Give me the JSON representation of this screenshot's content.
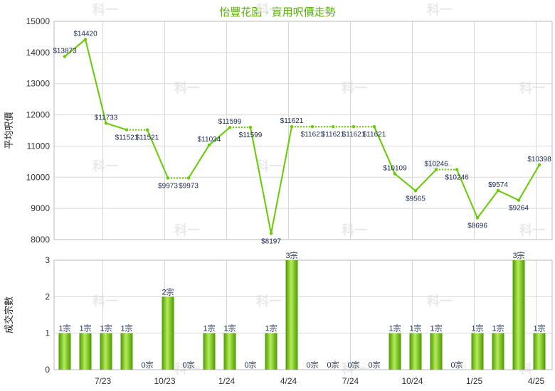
{
  "chart_data": [
    {
      "type": "line",
      "title": "怡豐花園 - 實用呎價走勢",
      "ylabel": "平均呎價",
      "ylim": [
        8000,
        15000
      ],
      "yticks": [
        "8000",
        "9000",
        "10000",
        "11000",
        "12000",
        "13000",
        "14000",
        "15000"
      ],
      "x_tick_labels": [
        "7/23",
        "10/23",
        "1/24",
        "4/24",
        "7/24",
        "10/24",
        "1/25",
        "4/25"
      ],
      "grid": true,
      "color": "#66cc00",
      "values": [
        13873,
        14420,
        11733,
        11521,
        11521,
        9973,
        9973,
        11034,
        11599,
        11599,
        8197,
        11621,
        11621,
        11621,
        11621,
        11621,
        10109,
        9565,
        10246,
        10246,
        8696,
        9574,
        9264,
        10398
      ],
      "dotted_segments": [
        3,
        5,
        8,
        11,
        12,
        13,
        14,
        18
      ],
      "labels": [
        "$13873",
        "$14420",
        "$11733",
        "$11521",
        "$11521",
        "$9973",
        "$9973",
        "$11034",
        "$11599",
        "$11599",
        "$8197",
        "$11621",
        "$11621",
        "$11621",
        "$11621",
        "$11621",
        "$10109",
        "$9565",
        "$10246",
        "$10246",
        "$8696",
        "$9574",
        "$9264",
        "$10398"
      ]
    },
    {
      "type": "bar",
      "ylabel": "成交宗數",
      "ylim": [
        0,
        3
      ],
      "yticks": [
        "0",
        "1",
        "2",
        "3"
      ],
      "x_tick_labels": [
        "7/23",
        "10/23",
        "1/24",
        "4/24",
        "7/24",
        "10/24",
        "1/25",
        "4/25"
      ],
      "values": [
        1,
        1,
        1,
        1,
        0,
        2,
        0,
        1,
        1,
        0,
        1,
        3,
        0,
        0,
        0,
        0,
        1,
        1,
        1,
        0,
        1,
        1,
        3,
        1
      ],
      "labels": [
        "1宗",
        "1宗",
        "1宗",
        "1宗",
        "0宗",
        "2宗",
        "0宗",
        "1宗",
        "1宗",
        "0宗",
        "1宗",
        "3宗",
        "0宗",
        "0宗",
        "0宗",
        "0宗",
        "1宗",
        "1宗",
        "1宗",
        "0宗",
        "1宗",
        "1宗",
        "3宗",
        "1宗"
      ]
    }
  ],
  "watermark": "科一"
}
